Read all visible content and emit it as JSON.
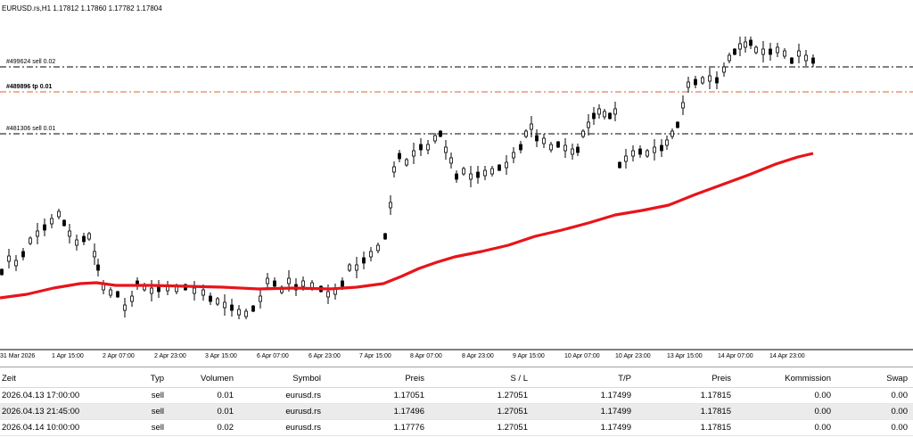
{
  "chart": {
    "title": "EURUSD.rs,H1  1.17812 1.17860 1.17782 1.17804",
    "price_range": [
      1.17,
      1.18
    ],
    "time_labels": [
      "31 Mar 2026",
      "1 Apr 15:00",
      "2 Apr 07:00",
      "2 Apr 23:00",
      "3 Apr 15:00",
      "6 Apr 07:00",
      "6 Apr 23:00",
      "7 Apr 15:00",
      "8 Apr 07:00",
      "8 Apr 23:00",
      "9 Apr 15:00",
      "10 Apr 07:00",
      "10 Apr 23:00",
      "13 Apr 15:00",
      "14 Apr 07:00",
      "14 Apr 23:00"
    ],
    "order_lines": [
      {
        "label": "#499624 sell 0.02",
        "color": "#000000"
      },
      {
        "label": "#489896 tp 0.01",
        "color": "#e0602a"
      },
      {
        "label": "#481306 sell 0.01",
        "color": "#000000"
      }
    ],
    "moving_average_color": "#e8141a",
    "candle_color": "#000000"
  },
  "table": {
    "headers": [
      "Zeit",
      "Typ",
      "Volumen",
      "Symbol",
      "Preis",
      "S / L",
      "T/P",
      "Preis",
      "Kommission",
      "Swap"
    ],
    "rows": [
      [
        "2026.04.13 17:00:00",
        "sell",
        "0.01",
        "eurusd.rs",
        "1.17051",
        "1.27051",
        "1.17499",
        "1.17815",
        "0.00",
        "0.00"
      ],
      [
        "2026.04.13 21:45:00",
        "sell",
        "0.01",
        "eurusd.rs",
        "1.17496",
        "1.27051",
        "1.17499",
        "1.17815",
        "0.00",
        "0.00"
      ],
      [
        "2026.04.14 10:00:00",
        "sell",
        "0.02",
        "eurusd.rs",
        "1.17776",
        "1.27051",
        "1.17499",
        "1.17815",
        "0.00",
        "0.00"
      ]
    ]
  }
}
